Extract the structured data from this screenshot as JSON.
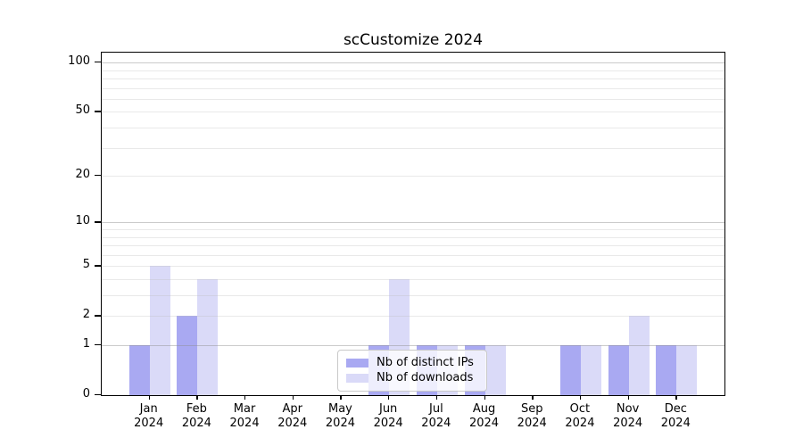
{
  "chart_data": {
    "type": "bar",
    "title": "scCustomize 2024",
    "xlabel": "",
    "ylabel": "",
    "categories": [
      "Jan",
      "Feb",
      "Mar",
      "Apr",
      "May",
      "Jun",
      "Jul",
      "Aug",
      "Sep",
      "Oct",
      "Nov",
      "Dec"
    ],
    "category_year": "2024",
    "series": [
      {
        "name": "Nb of distinct IPs",
        "color": "#a9a9f2",
        "values": [
          1,
          2,
          0,
          0,
          0,
          1,
          1,
          1,
          0,
          1,
          1,
          1
        ]
      },
      {
        "name": "Nb of downloads",
        "color": "#dadaf8",
        "values": [
          5,
          4,
          0,
          0,
          0,
          4,
          1,
          1,
          0,
          1,
          2,
          1
        ]
      }
    ],
    "y_axis": {
      "scale": "log10(value+1)",
      "tick_values": [
        0,
        1,
        2,
        5,
        10,
        20,
        50,
        100
      ],
      "minor_grid_values": [
        2,
        3,
        4,
        5,
        6,
        7,
        8,
        9,
        20,
        30,
        40,
        50,
        60,
        70,
        80,
        90
      ],
      "major_grid_values": [
        1,
        10,
        100
      ],
      "top_value": 115
    },
    "legend": {
      "position": "lower center",
      "frame": true
    },
    "grid": "on"
  },
  "colors": {
    "background": "#ffffff",
    "spine": "#000000",
    "grid_minor": "#e9e9e9",
    "grid_major": "#c6c6c6",
    "bar_dark": "#a9a9f2",
    "bar_light": "#dadaf8"
  }
}
